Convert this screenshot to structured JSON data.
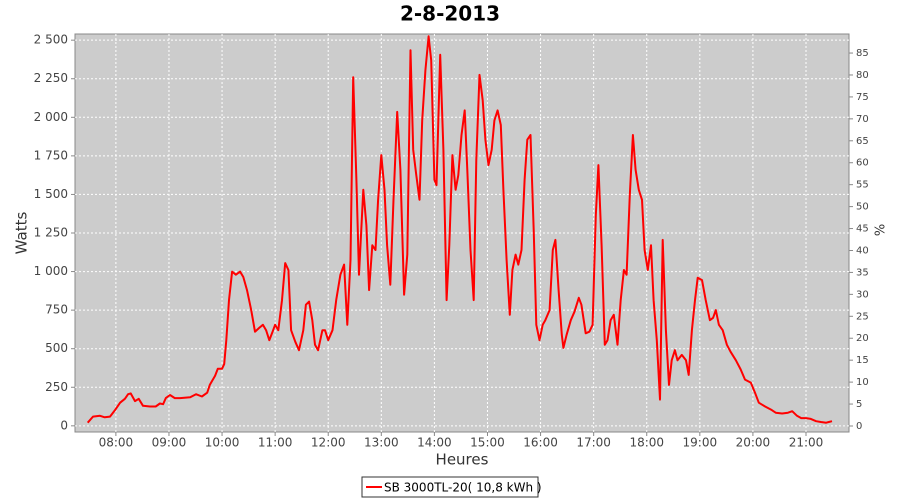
{
  "chart_data": {
    "type": "line",
    "title": "2-8-2013",
    "xlabel": "Heures",
    "ylabel": "Watts",
    "y2label": "%",
    "x": [
      7.47,
      7.57,
      7.7,
      7.79,
      7.89,
      7.98,
      8.08,
      8.17,
      8.23,
      8.28,
      8.36,
      8.43,
      8.51,
      8.64,
      8.75,
      8.83,
      8.89,
      8.94,
      9.02,
      9.11,
      9.21,
      9.4,
      9.51,
      9.62,
      9.72,
      9.77,
      9.87,
      9.92,
      10.0,
      10.04,
      10.08,
      10.13,
      10.19,
      10.26,
      10.34,
      10.4,
      10.47,
      10.55,
      10.62,
      10.7,
      10.77,
      10.83,
      10.89,
      10.94,
      11.0,
      11.06,
      11.13,
      11.19,
      11.25,
      11.3,
      11.38,
      11.45,
      11.53,
      11.58,
      11.64,
      11.7,
      11.75,
      11.81,
      11.89,
      11.94,
      12.0,
      12.08,
      12.15,
      12.23,
      12.3,
      12.36,
      12.42,
      12.47,
      12.53,
      12.58,
      12.66,
      12.72,
      12.77,
      12.83,
      12.89,
      12.94,
      13.0,
      13.06,
      13.11,
      13.17,
      13.23,
      13.3,
      13.36,
      13.43,
      13.49,
      13.55,
      13.6,
      13.66,
      13.72,
      13.77,
      13.83,
      13.89,
      13.94,
      14.0,
      14.04,
      14.11,
      14.17,
      14.23,
      14.28,
      14.34,
      14.4,
      14.45,
      14.51,
      14.57,
      14.62,
      14.68,
      14.74,
      14.79,
      14.85,
      14.91,
      14.96,
      15.02,
      15.08,
      15.13,
      15.19,
      15.25,
      15.3,
      15.36,
      15.42,
      15.47,
      15.53,
      15.58,
      15.64,
      15.7,
      15.75,
      15.81,
      15.87,
      15.92,
      15.98,
      16.04,
      16.09,
      16.17,
      16.23,
      16.28,
      16.34,
      16.4,
      16.43,
      16.49,
      16.57,
      16.64,
      16.72,
      16.77,
      16.85,
      16.92,
      16.98,
      17.04,
      17.09,
      17.15,
      17.21,
      17.26,
      17.32,
      17.38,
      17.45,
      17.51,
      17.57,
      17.62,
      17.68,
      17.74,
      17.79,
      17.85,
      17.91,
      17.96,
      18.02,
      18.08,
      18.13,
      18.19,
      18.25,
      18.3,
      18.36,
      18.42,
      18.47,
      18.53,
      18.58,
      18.66,
      18.74,
      18.79,
      18.85,
      18.91,
      18.96,
      19.04,
      19.11,
      19.19,
      19.25,
      19.3,
      19.36,
      19.43,
      19.51,
      19.58,
      19.68,
      19.77,
      19.85,
      19.96,
      20.04,
      20.11,
      20.23,
      20.34,
      20.43,
      20.55,
      20.66,
      20.74,
      20.83,
      20.91,
      21.0,
      21.09,
      21.19,
      21.28,
      21.38,
      21.43,
      21.49
    ],
    "series": [
      {
        "name": "SB 3000TL-20( 10,8 kWh )",
        "color": "#ff0000",
        "values": [
          20,
          60,
          65,
          55,
          60,
          100,
          150,
          175,
          205,
          210,
          160,
          175,
          130,
          125,
          125,
          145,
          140,
          180,
          200,
          180,
          180,
          185,
          205,
          190,
          215,
          265,
          325,
          370,
          370,
          400,
          555,
          815,
          1000,
          980,
          1000,
          965,
          880,
          750,
          610,
          635,
          655,
          620,
          555,
          600,
          655,
          620,
          815,
          1055,
          1010,
          620,
          545,
          490,
          620,
          785,
          805,
          685,
          525,
          490,
          620,
          620,
          555,
          620,
          815,
          980,
          1045,
          655,
          1075,
          2260,
          1595,
          980,
          1530,
          1300,
          880,
          1170,
          1140,
          1465,
          1755,
          1530,
          1170,
          915,
          1465,
          2035,
          1660,
          850,
          1110,
          2435,
          1790,
          1625,
          1465,
          1980,
          2305,
          2525,
          2370,
          1595,
          1560,
          2405,
          1790,
          815,
          1170,
          1755,
          1530,
          1625,
          1885,
          2045,
          1660,
          1140,
          815,
          1725,
          2275,
          2110,
          1855,
          1690,
          1790,
          1980,
          2045,
          1950,
          1530,
          1075,
          720,
          1010,
          1110,
          1045,
          1140,
          1595,
          1855,
          1885,
          1270,
          655,
          555,
          655,
          685,
          750,
          1140,
          1205,
          880,
          590,
          505,
          590,
          685,
          740,
          830,
          785,
          600,
          610,
          655,
          1365,
          1690,
          1170,
          525,
          555,
          685,
          720,
          525,
          815,
          1010,
          980,
          1495,
          1885,
          1660,
          1530,
          1465,
          1140,
          1010,
          1170,
          815,
          555,
          170,
          1205,
          620,
          265,
          425,
          490,
          425,
          460,
          425,
          330,
          620,
          815,
          960,
          945,
          815,
          685,
          700,
          750,
          655,
          620,
          525,
          480,
          425,
          365,
          300,
          280,
          215,
          150,
          125,
          105,
          85,
          80,
          85,
          95,
          65,
          50,
          50,
          45,
          30,
          25,
          20,
          25,
          30
        ]
      }
    ],
    "xlim": [
      7.23,
      21.81
    ],
    "xticks": [
      {
        "value": 8,
        "label": "08:00"
      },
      {
        "value": 9,
        "label": "09:00"
      },
      {
        "value": 10,
        "label": "10:00"
      },
      {
        "value": 11,
        "label": "11:00"
      },
      {
        "value": 12,
        "label": "12:00"
      },
      {
        "value": 13,
        "label": "13:00"
      },
      {
        "value": 14,
        "label": "14:00"
      },
      {
        "value": 15,
        "label": "15:00"
      },
      {
        "value": 16,
        "label": "16:00"
      },
      {
        "value": 17,
        "label": "17:00"
      },
      {
        "value": 18,
        "label": "18:00"
      },
      {
        "value": 19,
        "label": "19:00"
      },
      {
        "value": 20,
        "label": "20:00"
      },
      {
        "value": 21,
        "label": "21:00"
      }
    ],
    "ylim": [
      -40,
      2540
    ],
    "yticks": [
      0,
      250,
      500,
      750,
      {
        "value": 1000,
        "label": "1 000"
      },
      {
        "value": 1250,
        "label": "1 250"
      },
      {
        "value": 1500,
        "label": "1 500"
      },
      {
        "value": 1750,
        "label": "1 750"
      },
      {
        "value": 2000,
        "label": "2 000"
      },
      {
        "value": 2250,
        "label": "2 250"
      },
      {
        "value": 2500,
        "label": "2 500"
      }
    ],
    "y2lim": [
      -1.37,
      89.34
    ],
    "y2ticks": [
      0,
      5,
      10,
      15,
      20,
      25,
      30,
      35,
      40,
      45,
      50,
      55,
      60,
      65,
      70,
      75,
      80,
      85
    ],
    "grid": true,
    "legend": "bottom"
  }
}
